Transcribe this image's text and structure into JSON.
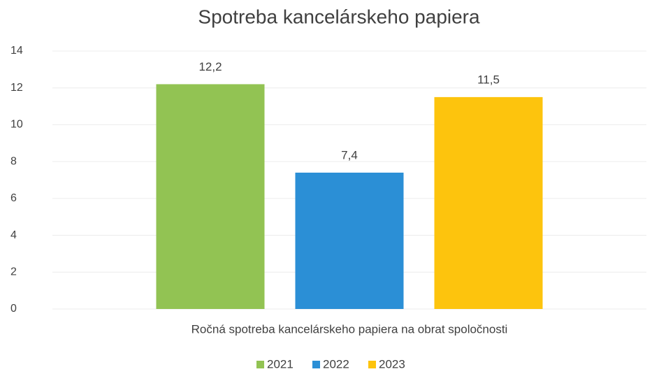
{
  "chart_data": {
    "type": "bar",
    "title": "Spotreba kancelárskeho papiera",
    "categories": [
      "Ročná spotreba kancelárskeho papiera na obrat spoločnosti"
    ],
    "series": [
      {
        "name": "2021",
        "color": "#92c353",
        "values": [
          12.2
        ],
        "value_labels": [
          "12,2"
        ]
      },
      {
        "name": "2022",
        "color": "#2b8fd6",
        "values": [
          7.4
        ],
        "value_labels": [
          "7,4"
        ]
      },
      {
        "name": "2023",
        "color": "#fdc40d",
        "values": [
          11.5
        ],
        "value_labels": [
          "11,5"
        ]
      }
    ],
    "ylim": [
      0,
      14
    ],
    "yticks": [
      0,
      2,
      4,
      6,
      8,
      10,
      12,
      14
    ],
    "grid": true,
    "legend": "bottom"
  }
}
